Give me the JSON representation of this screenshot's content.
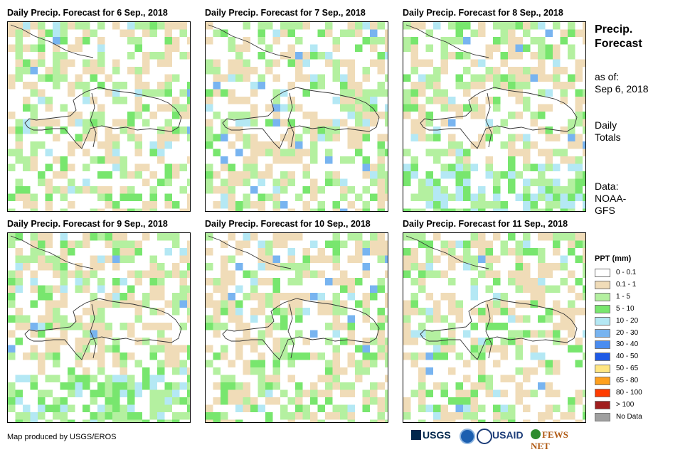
{
  "panels": [
    {
      "title": "Daily Precip. Forecast for 6 Sep., 2018"
    },
    {
      "title": "Daily Precip. Forecast for 7 Sep., 2018"
    },
    {
      "title": "Daily Precip. Forecast for 8 Sep., 2018"
    },
    {
      "title": "Daily Precip. Forecast for 9 Sep., 2018"
    },
    {
      "title": "Daily Precip. Forecast for 10 Sep., 2018"
    },
    {
      "title": "Daily Precip. Forecast for 11 Sep., 2018"
    }
  ],
  "side": {
    "title_line1": "Precip.",
    "title_line2": "Forecast",
    "asof_label": "as of:",
    "asof_date": "Sep 6, 2018",
    "daily1": "Daily",
    "daily2": "Totals",
    "data1": "Data:",
    "data2": "NOAA-",
    "data3": "GFS"
  },
  "legend": {
    "title": "PPT (mm)",
    "items": [
      {
        "label": "0 - 0.1",
        "color": "#ffffff"
      },
      {
        "label": "0.1 - 1",
        "color": "#f0dcb8"
      },
      {
        "label": "1 - 5",
        "color": "#b4f0a0"
      },
      {
        "label": "5 - 10",
        "color": "#78e66e"
      },
      {
        "label": "10 - 20",
        "color": "#b4e8f4"
      },
      {
        "label": "20 - 30",
        "color": "#78b4f0"
      },
      {
        "label": "30 - 40",
        "color": "#4a8cf0"
      },
      {
        "label": "40 - 50",
        "color": "#1e5ae6"
      },
      {
        "label": "50 - 65",
        "color": "#ffe682"
      },
      {
        "label": "65 - 80",
        "color": "#ffa01e"
      },
      {
        "label": "80 - 100",
        "color": "#ff3c00"
      },
      {
        "label": "> 100",
        "color": "#a01e1e"
      },
      {
        "label": "No Data",
        "color": "#a0a0a0"
      }
    ]
  },
  "footer": {
    "credit": "Map produced by USGS/EROS"
  },
  "logos": {
    "usgs": "USGS",
    "usaid": "USAID",
    "fewsnet": "FEWS NET"
  },
  "chart_data": [
    {
      "type": "heatmap",
      "title": "Daily Precip. Forecast for 6 Sep., 2018",
      "units": "mm",
      "dominant_classes": [
        "0.1 - 1",
        "1 - 5",
        "5 - 10",
        "10 - 20",
        "20 - 30"
      ]
    },
    {
      "type": "heatmap",
      "title": "Daily Precip. Forecast for 7 Sep., 2018",
      "units": "mm",
      "dominant_classes": [
        "0.1 - 1",
        "1 - 5",
        "5 - 10",
        "10 - 20",
        "20 - 30",
        "30 - 40"
      ]
    },
    {
      "type": "heatmap",
      "title": "Daily Precip. Forecast for 8 Sep., 2018",
      "units": "mm",
      "dominant_classes": [
        "0.1 - 1",
        "1 - 5",
        "5 - 10",
        "10 - 20",
        "20 - 30"
      ]
    },
    {
      "type": "heatmap",
      "title": "Daily Precip. Forecast for 9 Sep., 2018",
      "units": "mm",
      "dominant_classes": [
        "0.1 - 1",
        "1 - 5",
        "5 - 10",
        "10 - 20",
        "20 - 30"
      ]
    },
    {
      "type": "heatmap",
      "title": "Daily Precip. Forecast for 10 Sep., 2018",
      "units": "mm",
      "dominant_classes": [
        "0.1 - 1",
        "1 - 5",
        "5 - 10",
        "10 - 20"
      ]
    },
    {
      "type": "heatmap",
      "title": "Daily Precip. Forecast for 11 Sep., 2018",
      "units": "mm",
      "dominant_classes": [
        "0.1 - 1",
        "1 - 5",
        "5 - 10",
        "10 - 20"
      ]
    }
  ]
}
